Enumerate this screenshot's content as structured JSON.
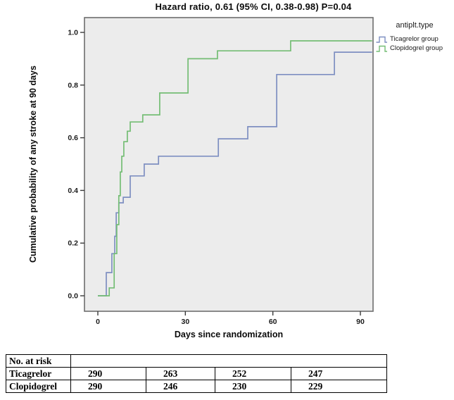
{
  "title": "Hazard ratio, 0.61 (95% CI, 0.38-0.98) P=0.04",
  "legend": {
    "header": "antiplt.type",
    "items": [
      {
        "label": "Ticagrelor group",
        "color": "#7e8fc1"
      },
      {
        "label": "Clopidogrel group",
        "color": "#74bd74"
      }
    ]
  },
  "chart_data": {
    "type": "line",
    "subtype": "kaplan-meier-step",
    "title": "Hazard ratio, 0.61 (95% CI, 0.38-0.98) P=0.04",
    "xlabel": "Days since randomization",
    "ylabel": "Cumulative probability of any stroke at 90 days",
    "xlim": [
      0,
      90
    ],
    "ylim": [
      0,
      1.0
    ],
    "grid": false,
    "legend_position": "right",
    "plot_background": "#ececec",
    "plot_border_color": "#6e6e6e",
    "x_ticks": [
      {
        "v": 0,
        "label": "0"
      },
      {
        "v": 30,
        "label": "30"
      },
      {
        "v": 60,
        "label": "60"
      },
      {
        "v": 90,
        "label": "90"
      }
    ],
    "y_ticks": [
      {
        "v": 0.0,
        "label": "0.0"
      },
      {
        "v": 0.2,
        "label": "0.2"
      },
      {
        "v": 0.4,
        "label": "0.4"
      },
      {
        "v": 0.6,
        "label": "0.6"
      },
      {
        "v": 0.8,
        "label": "0.8"
      },
      {
        "v": 1.0,
        "label": "1.0"
      }
    ],
    "series": [
      {
        "name": "Ticagrelor group",
        "color": "#7e8fc1",
        "points": [
          [
            0,
            0
          ],
          [
            2.9,
            0
          ],
          [
            2.9,
            0.088
          ],
          [
            4.8,
            0.088
          ],
          [
            4.8,
            0.16
          ],
          [
            5.8,
            0.16
          ],
          [
            5.8,
            0.226
          ],
          [
            6.3,
            0.226
          ],
          [
            6.3,
            0.315
          ],
          [
            7.2,
            0.315
          ],
          [
            7.2,
            0.353
          ],
          [
            8.7,
            0.353
          ],
          [
            8.7,
            0.374
          ],
          [
            11.1,
            0.374
          ],
          [
            11.1,
            0.455
          ],
          [
            15.9,
            0.455
          ],
          [
            15.9,
            0.5
          ],
          [
            20.8,
            0.5
          ],
          [
            20.8,
            0.53
          ],
          [
            41.3,
            0.53
          ],
          [
            41.3,
            0.596
          ],
          [
            51.4,
            0.596
          ],
          [
            51.4,
            0.642
          ],
          [
            61.3,
            0.642
          ],
          [
            61.3,
            0.84
          ],
          [
            81.1,
            0.84
          ],
          [
            81.1,
            0.925
          ],
          [
            94,
            0.925
          ]
        ]
      },
      {
        "name": "Clopidogrel group",
        "color": "#74bd74",
        "points": [
          [
            0,
            0
          ],
          [
            3.9,
            0
          ],
          [
            3.9,
            0.03
          ],
          [
            5.6,
            0.03
          ],
          [
            5.6,
            0.16
          ],
          [
            6.5,
            0.16
          ],
          [
            6.5,
            0.27
          ],
          [
            7.2,
            0.27
          ],
          [
            7.2,
            0.38
          ],
          [
            7.7,
            0.38
          ],
          [
            7.7,
            0.47
          ],
          [
            8.2,
            0.47
          ],
          [
            8.2,
            0.53
          ],
          [
            8.9,
            0.53
          ],
          [
            8.9,
            0.585
          ],
          [
            10.1,
            0.585
          ],
          [
            10.1,
            0.625
          ],
          [
            11.1,
            0.625
          ],
          [
            11.1,
            0.66
          ],
          [
            15.4,
            0.66
          ],
          [
            15.4,
            0.687
          ],
          [
            21.2,
            0.687
          ],
          [
            21.2,
            0.77
          ],
          [
            30.9,
            0.77
          ],
          [
            30.9,
            0.9
          ],
          [
            41,
            0.9
          ],
          [
            41,
            0.93
          ],
          [
            66.1,
            0.93
          ],
          [
            66.1,
            0.968
          ],
          [
            94,
            0.968
          ]
        ]
      }
    ]
  },
  "risk_table": {
    "header_label": "No. at risk",
    "rows": [
      {
        "label": "Ticagrelor",
        "values": [
          "290",
          "263",
          "252",
          "247"
        ]
      },
      {
        "label": "Clopidogrel",
        "values": [
          "290",
          "246",
          "230",
          "229"
        ]
      }
    ]
  }
}
